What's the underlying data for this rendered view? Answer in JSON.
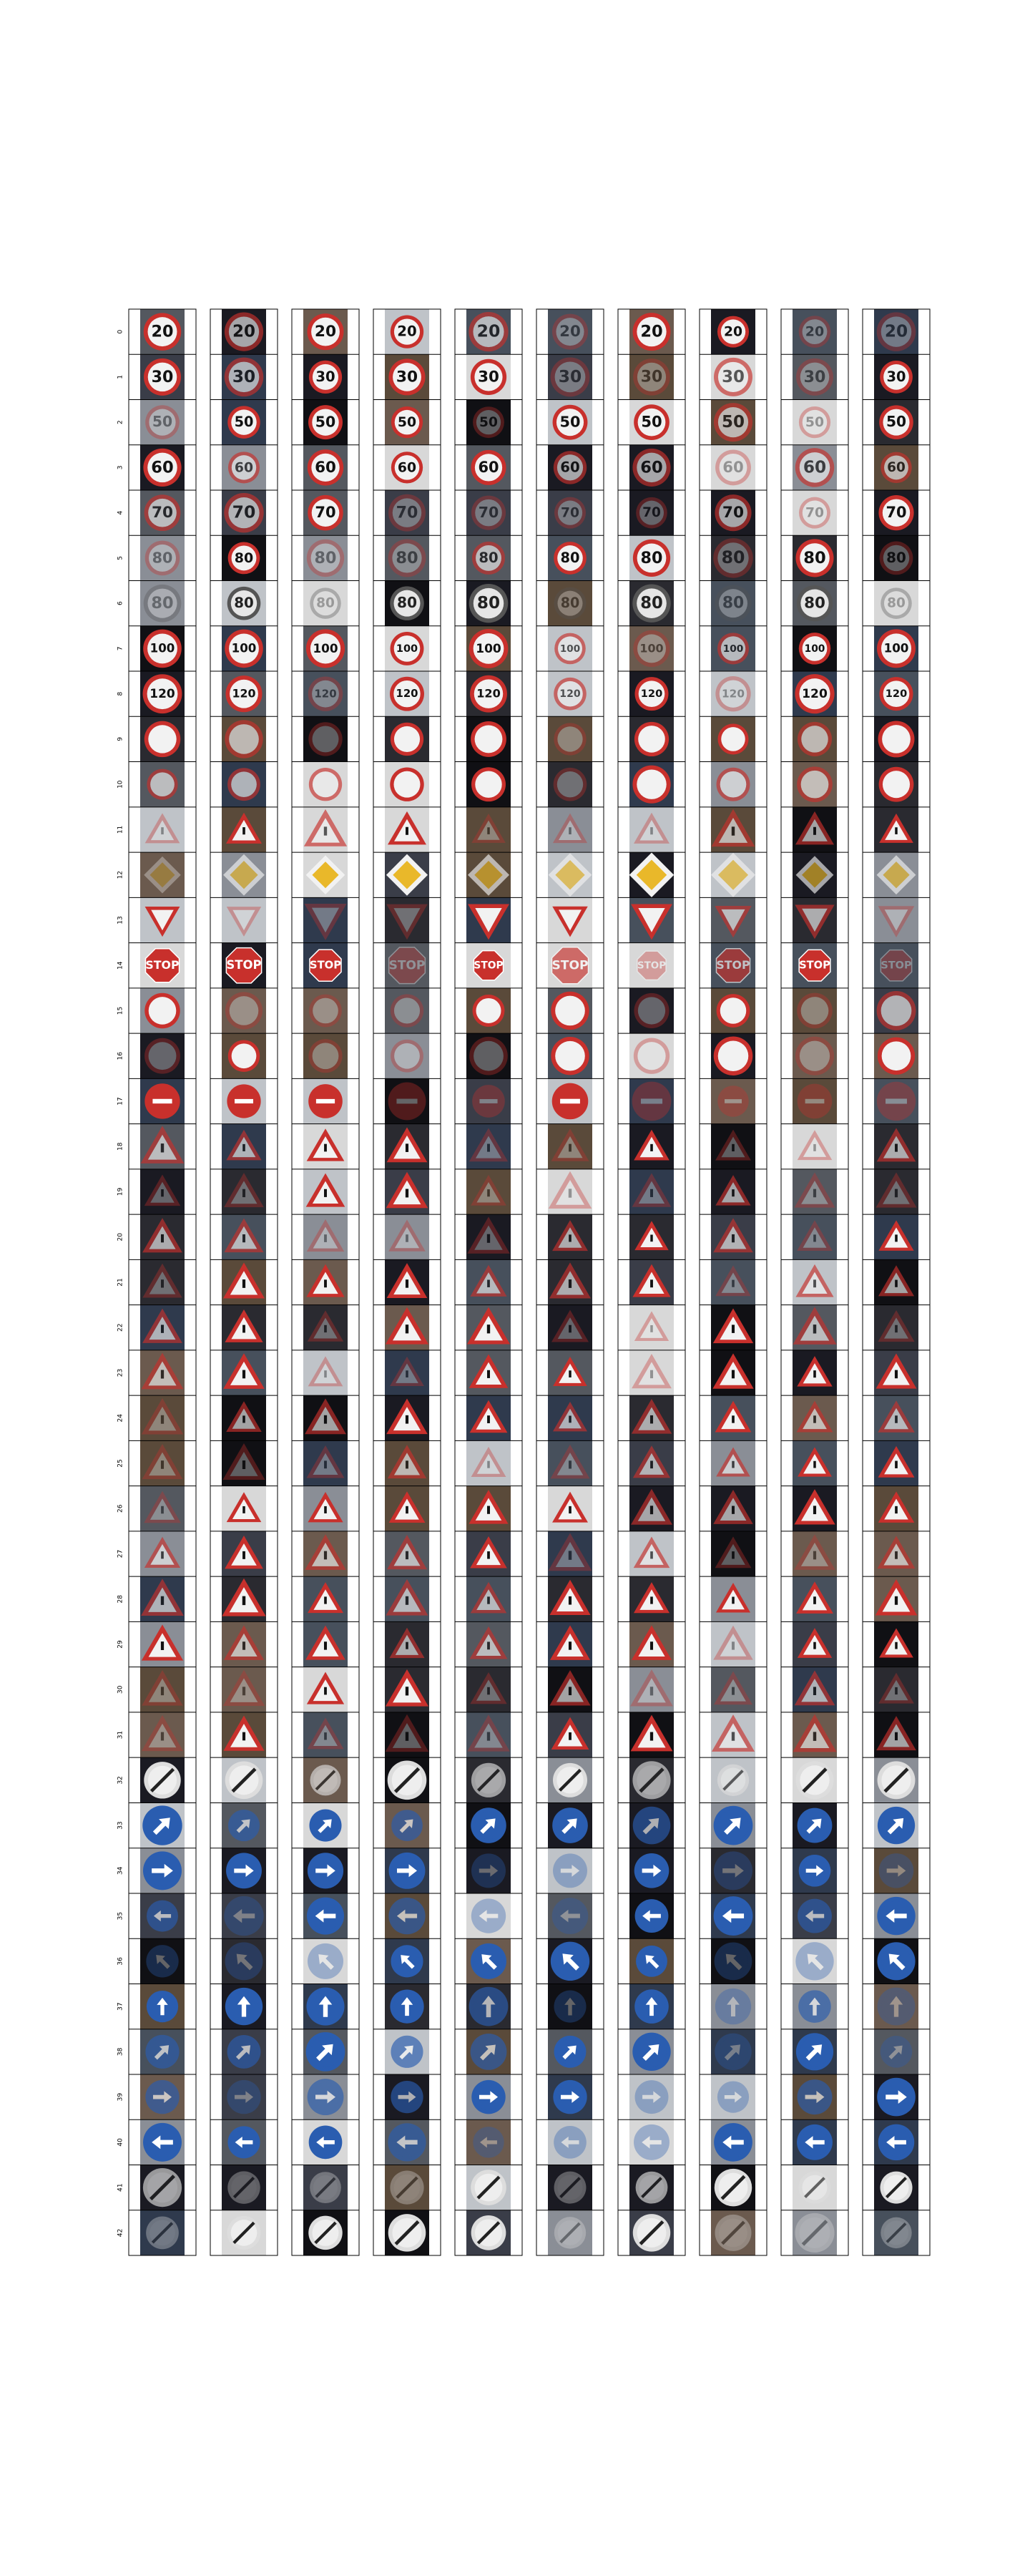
{
  "grid": {
    "columns": 10,
    "row_labels": [
      "0",
      "1",
      "2",
      "3",
      "4",
      "5",
      "6",
      "7",
      "8",
      "9",
      "10",
      "11",
      "12",
      "13",
      "14",
      "15",
      "16",
      "17",
      "18",
      "19",
      "20",
      "21",
      "22",
      "23",
      "24",
      "25",
      "26",
      "27",
      "28",
      "29",
      "30",
      "31",
      "32",
      "33",
      "34",
      "35",
      "36",
      "37",
      "38",
      "39",
      "40",
      "41",
      "42"
    ]
  },
  "rows": [
    {
      "shape": "circle",
      "border": "#c8302c",
      "fill": "#f2f2f2",
      "symbol": "20",
      "symbol_color": "#111111"
    },
    {
      "shape": "circle",
      "border": "#c8302c",
      "fill": "#f2f2f2",
      "symbol": "30",
      "symbol_color": "#111111"
    },
    {
      "shape": "circle",
      "border": "#c8302c",
      "fill": "#f2f2f2",
      "symbol": "50",
      "symbol_color": "#111111"
    },
    {
      "shape": "circle",
      "border": "#c8302c",
      "fill": "#f2f2f2",
      "symbol": "60",
      "symbol_color": "#111111"
    },
    {
      "shape": "circle",
      "border": "#c8302c",
      "fill": "#f2f2f2",
      "symbol": "70",
      "symbol_color": "#111111"
    },
    {
      "shape": "circle",
      "border": "#c8302c",
      "fill": "#f2f2f2",
      "symbol": "80",
      "symbol_color": "#111111"
    },
    {
      "shape": "circle",
      "border": "#555555",
      "fill": "#e6e6e6",
      "symbol": "80",
      "symbol_color": "#222222"
    },
    {
      "shape": "circle",
      "border": "#c8302c",
      "fill": "#f2f2f2",
      "symbol": "100",
      "symbol_color": "#111111"
    },
    {
      "shape": "circle",
      "border": "#c8302c",
      "fill": "#f2f2f2",
      "symbol": "120",
      "symbol_color": "#111111"
    },
    {
      "shape": "circle",
      "border": "#c8302c",
      "fill": "#f2f2f2",
      "symbol": "",
      "symbol_color": "#111111"
    },
    {
      "shape": "circle",
      "border": "#c8302c",
      "fill": "#f2f2f2",
      "symbol": "",
      "symbol_color": "#111111"
    },
    {
      "shape": "triangle",
      "border": "#c8302c",
      "fill": "#f2f2f2",
      "symbol": "",
      "symbol_color": "#111111"
    },
    {
      "shape": "diamond",
      "border": "#f2f2f2",
      "fill": "#e9b82a",
      "symbol": "",
      "symbol_color": "#111111"
    },
    {
      "shape": "triangle-down",
      "border": "#c8302c",
      "fill": "#f2f2f2",
      "symbol": "",
      "symbol_color": "#111111"
    },
    {
      "shape": "octagon",
      "border": "#ffffff",
      "fill": "#c8302c",
      "symbol": "STOP",
      "symbol_color": "#ffffff"
    },
    {
      "shape": "circle",
      "border": "#c8302c",
      "fill": "#f2f2f2",
      "symbol": "",
      "symbol_color": "#111111"
    },
    {
      "shape": "circle",
      "border": "#c8302c",
      "fill": "#f2f2f2",
      "symbol": "",
      "symbol_color": "#111111"
    },
    {
      "shape": "circle",
      "border": "#c8302c",
      "fill": "#c8302c",
      "symbol": "",
      "symbol_color": "#ffffff"
    },
    {
      "shape": "triangle",
      "border": "#c8302c",
      "fill": "#f2f2f2",
      "symbol": "",
      "symbol_color": "#111111"
    },
    {
      "shape": "triangle",
      "border": "#c8302c",
      "fill": "#f2f2f2",
      "symbol": "",
      "symbol_color": "#111111"
    },
    {
      "shape": "triangle",
      "border": "#c8302c",
      "fill": "#f2f2f2",
      "symbol": "",
      "symbol_color": "#111111"
    },
    {
      "shape": "triangle",
      "border": "#c8302c",
      "fill": "#f2f2f2",
      "symbol": "",
      "symbol_color": "#111111"
    },
    {
      "shape": "triangle",
      "border": "#c8302c",
      "fill": "#f2f2f2",
      "symbol": "",
      "symbol_color": "#111111"
    },
    {
      "shape": "triangle",
      "border": "#c8302c",
      "fill": "#f2f2f2",
      "symbol": "",
      "symbol_color": "#111111"
    },
    {
      "shape": "triangle",
      "border": "#c8302c",
      "fill": "#f2f2f2",
      "symbol": "",
      "symbol_color": "#111111"
    },
    {
      "shape": "triangle",
      "border": "#c8302c",
      "fill": "#f2f2f2",
      "symbol": "",
      "symbol_color": "#111111"
    },
    {
      "shape": "triangle",
      "border": "#c8302c",
      "fill": "#f2f2f2",
      "symbol": "",
      "symbol_color": "#111111"
    },
    {
      "shape": "triangle",
      "border": "#c8302c",
      "fill": "#f2f2f2",
      "symbol": "",
      "symbol_color": "#111111"
    },
    {
      "shape": "triangle",
      "border": "#c8302c",
      "fill": "#f2f2f2",
      "symbol": "",
      "symbol_color": "#111111"
    },
    {
      "shape": "triangle",
      "border": "#c8302c",
      "fill": "#f2f2f2",
      "symbol": "",
      "symbol_color": "#111111"
    },
    {
      "shape": "triangle",
      "border": "#c8302c",
      "fill": "#f2f2f2",
      "symbol": "",
      "symbol_color": "#111111"
    },
    {
      "shape": "triangle",
      "border": "#c8302c",
      "fill": "#f2f2f2",
      "symbol": "",
      "symbol_color": "#111111"
    },
    {
      "shape": "circle-slash",
      "border": "#dddddd",
      "fill": "#eeeeee",
      "symbol": "",
      "symbol_color": "#222222"
    },
    {
      "shape": "circle",
      "border": "#2a5db0",
      "fill": "#2a5db0",
      "symbol": "",
      "symbol_color": "#ffffff"
    },
    {
      "shape": "circle",
      "border": "#2a5db0",
      "fill": "#2a5db0",
      "symbol": "",
      "symbol_color": "#ffffff"
    },
    {
      "shape": "circle",
      "border": "#2a5db0",
      "fill": "#2a5db0",
      "symbol": "",
      "symbol_color": "#ffffff"
    },
    {
      "shape": "circle",
      "border": "#2a5db0",
      "fill": "#2a5db0",
      "symbol": "",
      "symbol_color": "#ffffff"
    },
    {
      "shape": "circle",
      "border": "#2a5db0",
      "fill": "#2a5db0",
      "symbol": "",
      "symbol_color": "#ffffff"
    },
    {
      "shape": "circle",
      "border": "#2a5db0",
      "fill": "#2a5db0",
      "symbol": "",
      "symbol_color": "#ffffff"
    },
    {
      "shape": "circle",
      "border": "#2a5db0",
      "fill": "#2a5db0",
      "symbol": "",
      "symbol_color": "#ffffff"
    },
    {
      "shape": "circle",
      "border": "#2a5db0",
      "fill": "#2a5db0",
      "symbol": "",
      "symbol_color": "#ffffff"
    },
    {
      "shape": "circle-slash",
      "border": "#dddddd",
      "fill": "#eeeeee",
      "symbol": "",
      "symbol_color": "#222222"
    },
    {
      "shape": "circle-slash",
      "border": "#dddddd",
      "fill": "#eeeeee",
      "symbol": "",
      "symbol_color": "#222222"
    }
  ],
  "colors": {
    "frame": "#000000",
    "page_background": "#ffffff"
  }
}
